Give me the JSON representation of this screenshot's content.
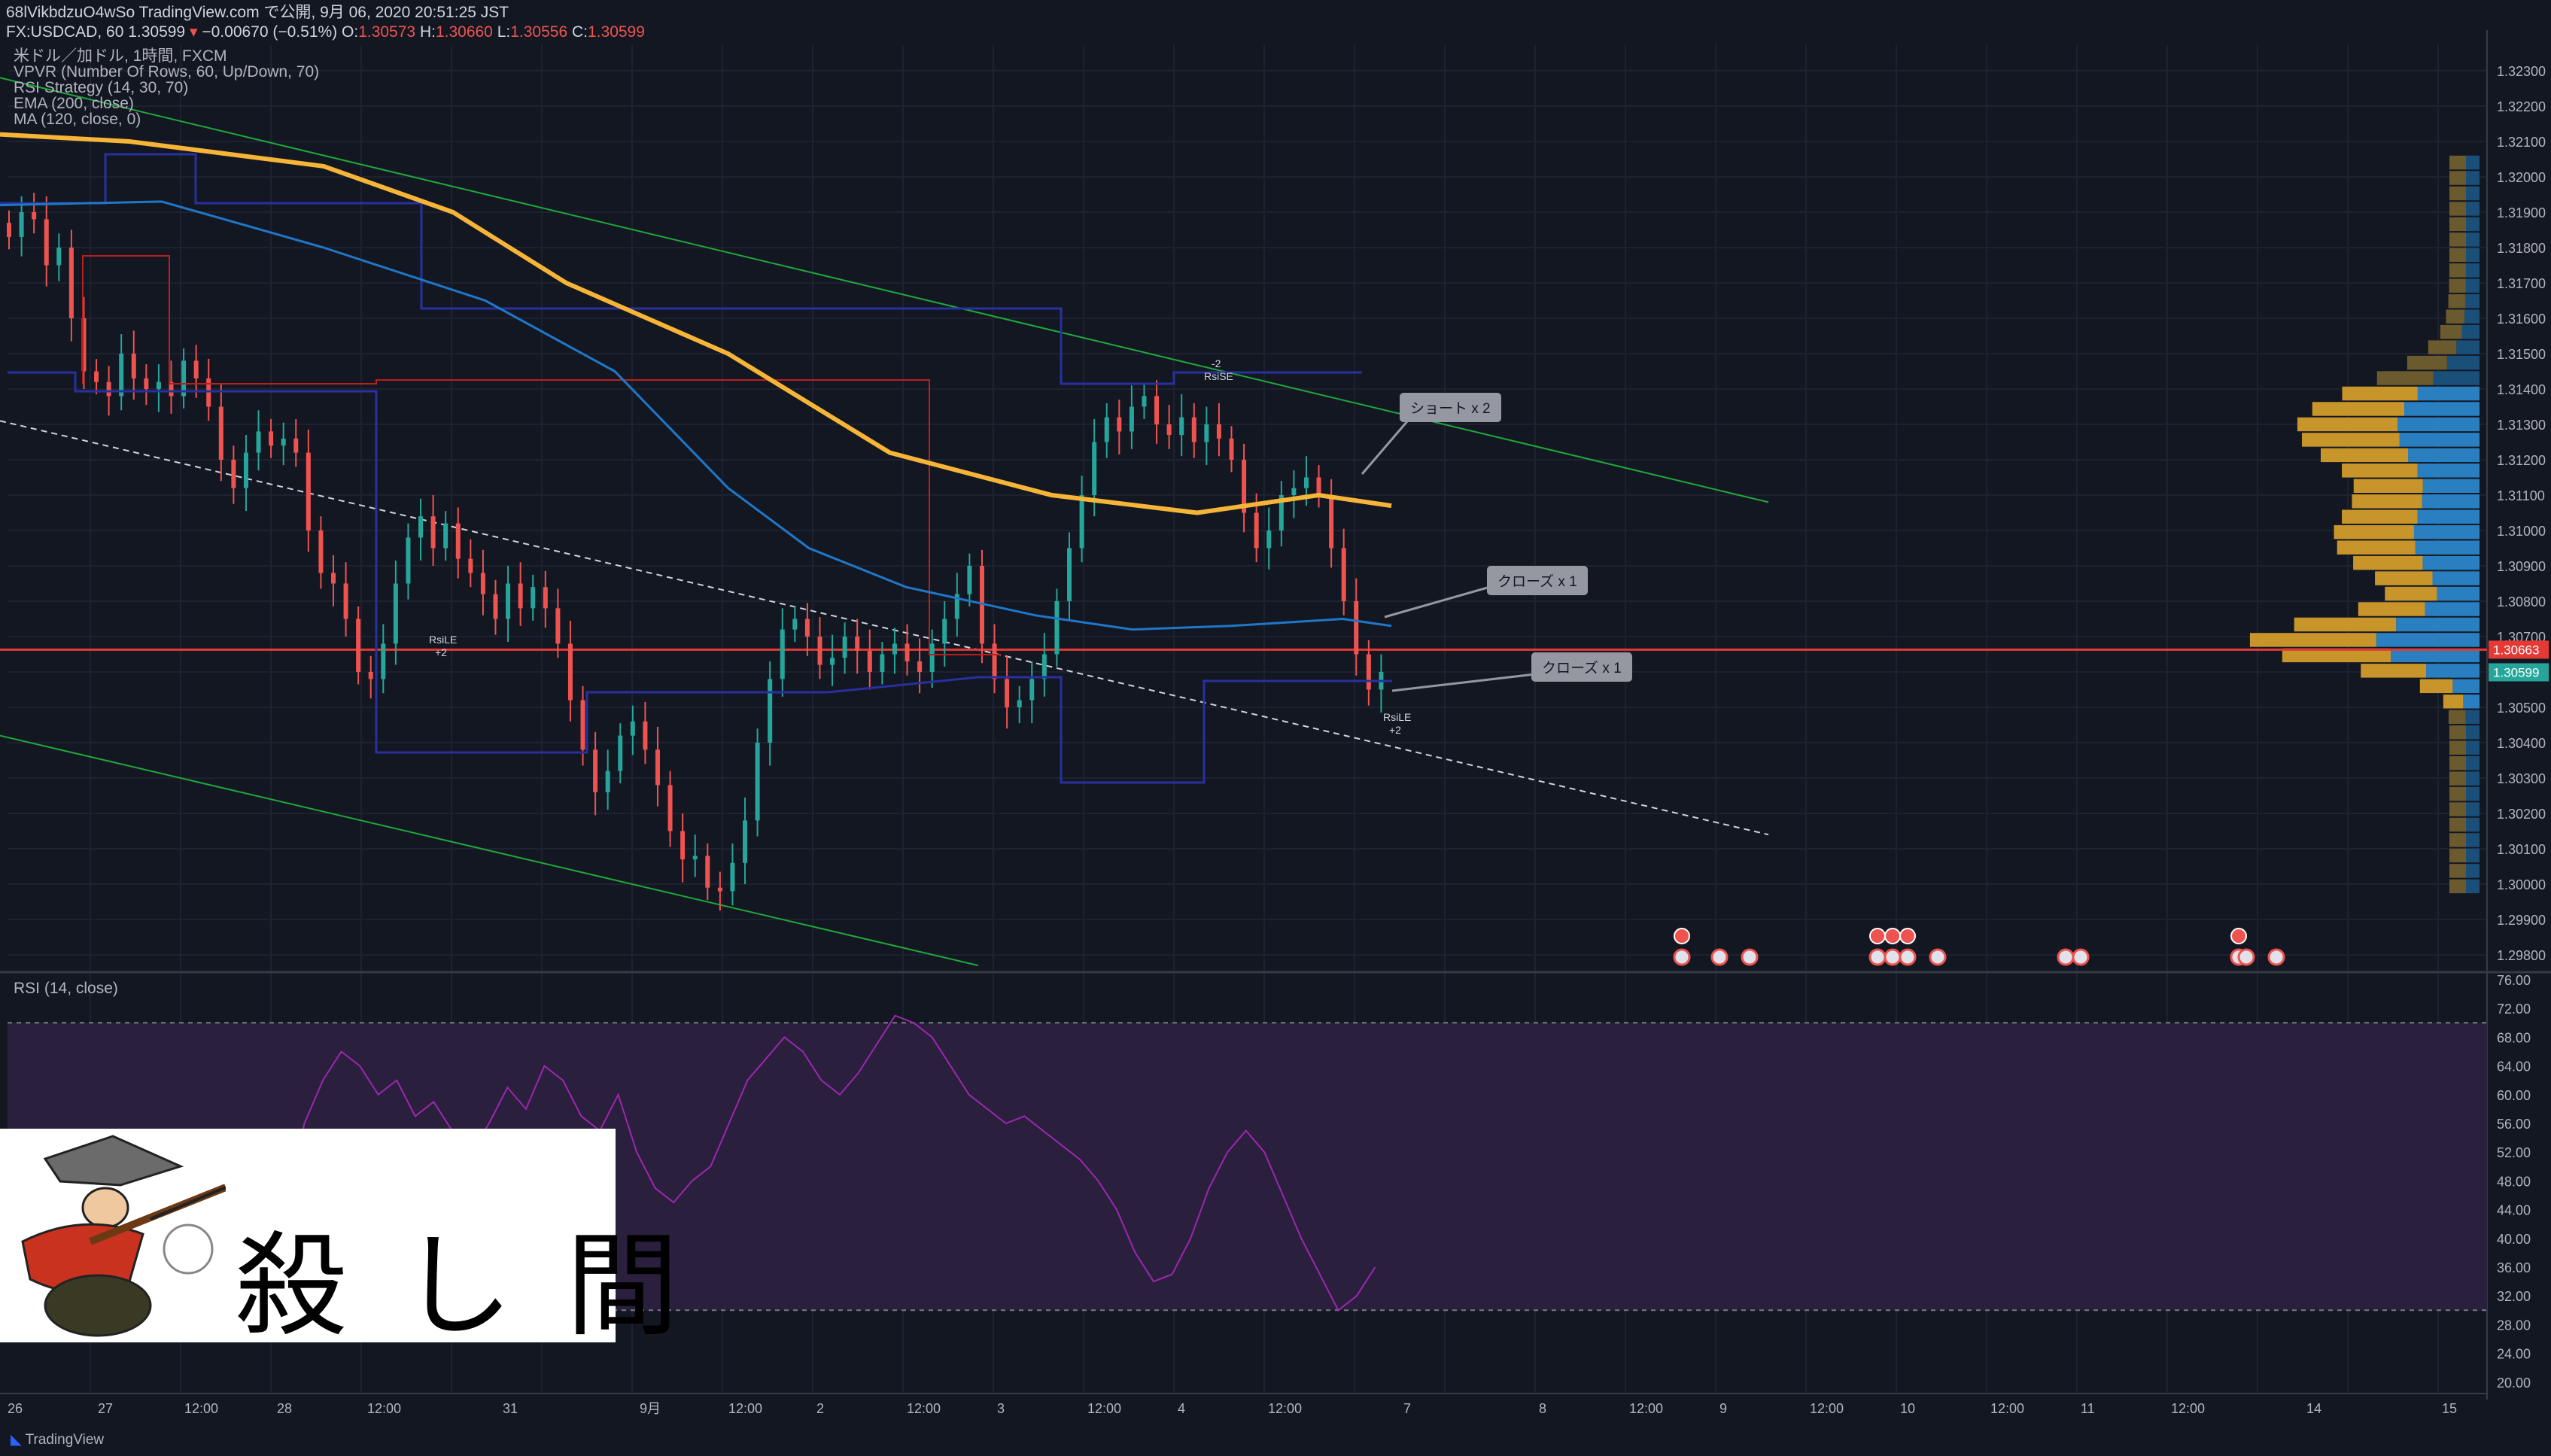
{
  "header": {
    "publisher": "68lVikbdzuO4wSo TradingView.com で公開, 9月 06, 2020 20:51:25 JST",
    "symbol_line": "FX:USDCAD, 60 1.30599",
    "change": "−0.00670 (−0.51%)",
    "ohlc": {
      "o_label": "O:",
      "o": "1.30573",
      "h_label": "H:",
      "h": "1.30660",
      "l_label": "L:",
      "l": "1.30556",
      "c_label": "C:",
      "c": "1.30599"
    }
  },
  "legend": [
    "米ドル／加ドル, 1時間, FXCM",
    "VPVR (Number Of Rows, 60, Up/Down, 70)",
    "RSI Strategy (14, 30, 70)",
    "EMA (200, close)",
    "MA (120, close, 0)"
  ],
  "annotations": {
    "short": "ショート x 2",
    "close1": "クローズ x 1",
    "close2": "クローズ x 1",
    "rsise": "RsiSE",
    "rsile": "RsiLE",
    "minus2": "-2",
    "plus2": "+2"
  },
  "rsi_title": "RSI (14, close)",
  "logo_text": "殺し間",
  "brand": "TradingView",
  "colors": {
    "bg": "#131722",
    "up": "#26a69a",
    "down": "#ef5350",
    "ema": "#f7b538",
    "ma": "#1f77c9",
    "channel": "#1fa83a",
    "hline": "#e53935",
    "rsi": "#9c27b0"
  },
  "chart_data": [
    {
      "type": "candlestick",
      "title": "USDCAD 1H",
      "price_axis": {
        "ticks": [
          "1.32300",
          "1.32200",
          "1.32100",
          "1.32000",
          "1.31900",
          "1.31800",
          "1.31700",
          "1.31600",
          "1.31500",
          "1.31400",
          "1.31300",
          "1.31200",
          "1.31100",
          "1.31000",
          "1.30900",
          "1.30800",
          "1.30700",
          "1.30600",
          "1.30500",
          "1.30400",
          "1.30300",
          "1.30200",
          "1.30100",
          "1.30000",
          "1.29900",
          "1.29800"
        ],
        "ylim": [
          1.2976,
          1.3234
        ]
      },
      "time_axis": {
        "ticks": [
          "26",
          "27",
          "12:00",
          "28",
          "12:00",
          "31",
          "9月",
          "12:00",
          "2",
          "12:00",
          "3",
          "12:00",
          "4",
          "12:00",
          "7",
          "8",
          "12:00",
          "9",
          "12:00",
          "10",
          "12:00",
          "11",
          "12:00",
          "14",
          "15"
        ]
      },
      "price_labels": {
        "red": "1.30663",
        "green": "1.30599"
      },
      "horizontal_line": 1.30663,
      "close_path": [
        1.3183,
        1.319,
        1.3188,
        1.3175,
        1.318,
        1.316,
        1.3145,
        1.3142,
        1.3138,
        1.315,
        1.3143,
        1.314,
        1.3142,
        1.3138,
        1.3148,
        1.3143,
        1.3135,
        1.312,
        1.3112,
        1.3122,
        1.3128,
        1.3124,
        1.3126,
        1.3122,
        1.31,
        1.3088,
        1.3085,
        1.3075,
        1.306,
        1.3058,
        1.3068,
        1.3085,
        1.3098,
        1.3104,
        1.3095,
        1.3102,
        1.3092,
        1.3088,
        1.3082,
        1.3075,
        1.3085,
        1.3078,
        1.3084,
        1.3078,
        1.3068,
        1.3052,
        1.3038,
        1.3026,
        1.3032,
        1.3042,
        1.3046,
        1.3038,
        1.3028,
        1.3015,
        1.3007,
        1.3008,
        1.2999,
        1.2998,
        1.3006,
        1.3018,
        1.304,
        1.3058,
        1.3072,
        1.3075,
        1.307,
        1.3062,
        1.3064,
        1.307,
        1.3066,
        1.306,
        1.3065,
        1.3068,
        1.3063,
        1.306,
        1.3068,
        1.3075,
        1.3082,
        1.309,
        1.3068,
        1.3058,
        1.305,
        1.3052,
        1.3058,
        1.3065,
        1.308,
        1.3095,
        1.311,
        1.3125,
        1.3132,
        1.3128,
        1.3135,
        1.3138,
        1.313,
        1.3127,
        1.3132,
        1.3125,
        1.313,
        1.3126,
        1.312,
        1.3105,
        1.3095,
        1.31,
        1.311,
        1.3112,
        1.3115,
        1.311,
        1.3095,
        1.308,
        1.3065,
        1.3055,
        1.306
      ],
      "ema200": [
        [
          0,
          1.3212
        ],
        [
          80,
          1.321
        ],
        [
          200,
          1.3203
        ],
        [
          280,
          1.319
        ],
        [
          350,
          1.317
        ],
        [
          450,
          1.315
        ],
        [
          550,
          1.3122
        ],
        [
          650,
          1.311
        ],
        [
          740,
          1.3105
        ],
        [
          815,
          1.311
        ],
        [
          860,
          1.3107
        ]
      ],
      "ma120": [
        [
          0,
          1.3192
        ],
        [
          100,
          1.3193
        ],
        [
          200,
          1.318
        ],
        [
          300,
          1.3165
        ],
        [
          380,
          1.3145
        ],
        [
          450,
          1.3112
        ],
        [
          500,
          1.3095
        ],
        [
          560,
          1.3084
        ],
        [
          640,
          1.3076
        ],
        [
          700,
          1.3072
        ],
        [
          760,
          1.3073
        ],
        [
          830,
          1.3075
        ],
        [
          860,
          1.3073
        ]
      ],
      "channel_upper": [
        [
          0,
          1.3228
        ],
        [
          1085,
          1.3108
        ]
      ],
      "channel_lower": [
        [
          0,
          1.3042
        ],
        [
          600,
          1.2977
        ]
      ],
      "trend_dashed": [
        [
          0,
          1.3131
        ],
        [
          1085,
          1.3014
        ]
      ],
      "vpvr_price_range": [
        1.2997,
        1.3206
      ]
    },
    {
      "type": "line",
      "title": "RSI (14, close)",
      "ylim": [
        20,
        76
      ],
      "y_ticks": [
        "76.00",
        "72.00",
        "68.00",
        "64.00",
        "60.00",
        "56.00",
        "52.00",
        "48.00",
        "44.00",
        "40.00",
        "36.00",
        "32.00",
        "28.00",
        "24.00",
        "20.00"
      ],
      "bands": [
        30,
        70
      ],
      "values": [
        44,
        38,
        34,
        32,
        35,
        40,
        42,
        40,
        38,
        35,
        32,
        30,
        31,
        29,
        33,
        45,
        56,
        62,
        66,
        64,
        60,
        62,
        57,
        59,
        55,
        52,
        56,
        61,
        58,
        64,
        62,
        57,
        55,
        60,
        52,
        47,
        45,
        48,
        50,
        56,
        62,
        65,
        68,
        66,
        62,
        60,
        63,
        67,
        71,
        70,
        68,
        64,
        60,
        58,
        56,
        57,
        55,
        53,
        51,
        48,
        44,
        38,
        34,
        35,
        40,
        47,
        52,
        55,
        52,
        46,
        40,
        35,
        30,
        32,
        36
      ]
    }
  ]
}
